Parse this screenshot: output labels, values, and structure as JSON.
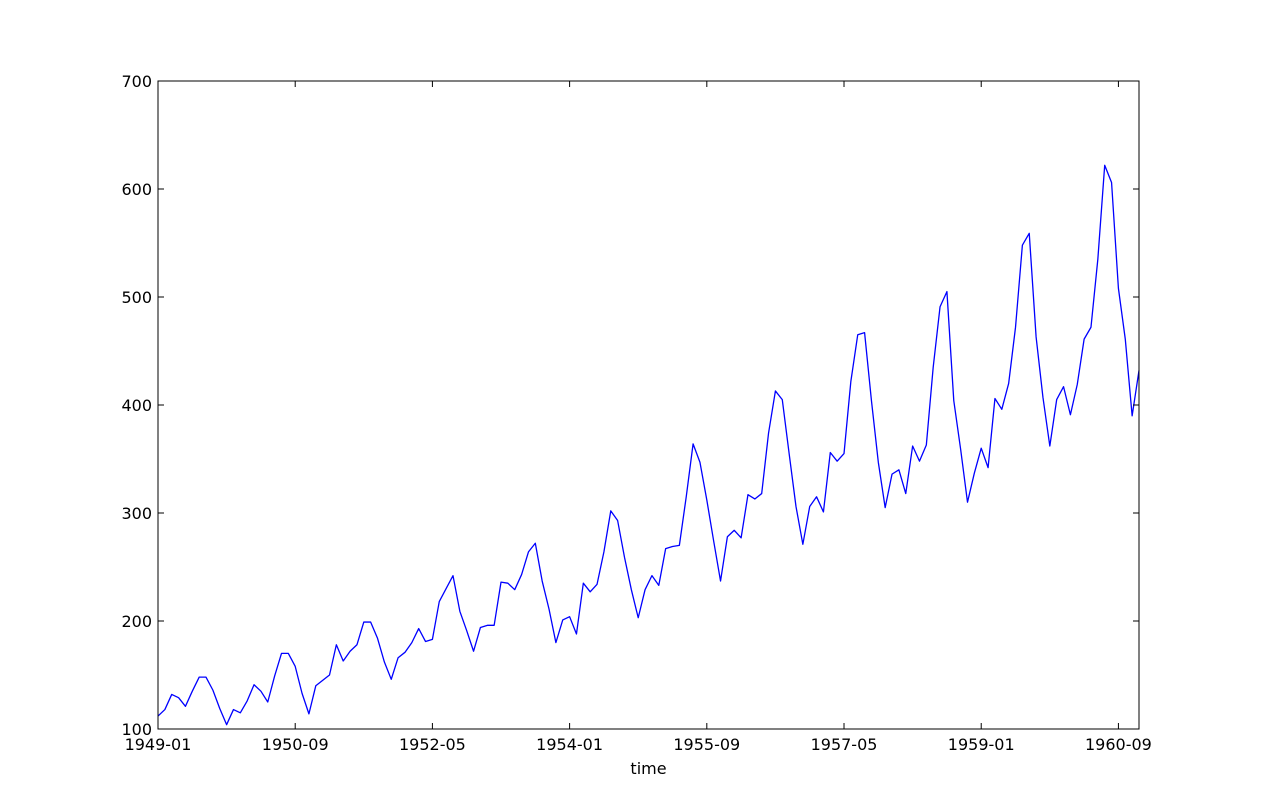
{
  "chart_data": {
    "type": "line",
    "title": "",
    "xlabel": "time",
    "ylabel": "",
    "ylim": [
      100,
      700
    ],
    "yticks": [
      100,
      200,
      300,
      400,
      500,
      600,
      700
    ],
    "xlim": [
      "1949-01",
      "1960-12"
    ],
    "xticks": [
      "1949-01",
      "1950-09",
      "1952-05",
      "1954-01",
      "1955-09",
      "1957-05",
      "1959-01",
      "1960-09"
    ],
    "grid": false,
    "legend": "none",
    "colors": {
      "line": "#0000ff",
      "axes": "#000000",
      "background": "#ffffff"
    },
    "series": [
      {
        "x": [
          "1949-01",
          "1949-02",
          "1949-03",
          "1949-04",
          "1949-05",
          "1949-06",
          "1949-07",
          "1949-08",
          "1949-09",
          "1949-10",
          "1949-11",
          "1949-12",
          "1950-01",
          "1950-02",
          "1950-03",
          "1950-04",
          "1950-05",
          "1950-06",
          "1950-07",
          "1950-08",
          "1950-09",
          "1950-10",
          "1950-11",
          "1950-12",
          "1951-01",
          "1951-02",
          "1951-03",
          "1951-04",
          "1951-05",
          "1951-06",
          "1951-07",
          "1951-08",
          "1951-09",
          "1951-10",
          "1951-11",
          "1951-12",
          "1952-01",
          "1952-02",
          "1952-03",
          "1952-04",
          "1952-05",
          "1952-06",
          "1952-07",
          "1952-08",
          "1952-09",
          "1952-10",
          "1952-11",
          "1952-12",
          "1953-01",
          "1953-02",
          "1953-03",
          "1953-04",
          "1953-05",
          "1953-06",
          "1953-07",
          "1953-08",
          "1953-09",
          "1953-10",
          "1953-11",
          "1953-12",
          "1954-01",
          "1954-02",
          "1954-03",
          "1954-04",
          "1954-05",
          "1954-06",
          "1954-07",
          "1954-08",
          "1954-09",
          "1954-10",
          "1954-11",
          "1954-12",
          "1955-01",
          "1955-02",
          "1955-03",
          "1955-04",
          "1955-05",
          "1955-06",
          "1955-07",
          "1955-08",
          "1955-09",
          "1955-10",
          "1955-11",
          "1955-12",
          "1956-01",
          "1956-02",
          "1956-03",
          "1956-04",
          "1956-05",
          "1956-06",
          "1956-07",
          "1956-08",
          "1956-09",
          "1956-10",
          "1956-11",
          "1956-12",
          "1957-01",
          "1957-02",
          "1957-03",
          "1957-04",
          "1957-05",
          "1957-06",
          "1957-07",
          "1957-08",
          "1957-09",
          "1957-10",
          "1957-11",
          "1957-12",
          "1958-01",
          "1958-02",
          "1958-03",
          "1958-04",
          "1958-05",
          "1958-06",
          "1958-07",
          "1958-08",
          "1958-09",
          "1958-10",
          "1958-11",
          "1958-12",
          "1959-01",
          "1959-02",
          "1959-03",
          "1959-04",
          "1959-05",
          "1959-06",
          "1959-07",
          "1959-08",
          "1959-09",
          "1959-10",
          "1959-11",
          "1959-12",
          "1960-01",
          "1960-02",
          "1960-03",
          "1960-04",
          "1960-05",
          "1960-06",
          "1960-07",
          "1960-08",
          "1960-09",
          "1960-10",
          "1960-11",
          "1960-12"
        ],
        "values": [
          112,
          118,
          132,
          129,
          121,
          135,
          148,
          148,
          136,
          119,
          104,
          118,
          115,
          126,
          141,
          135,
          125,
          149,
          170,
          170,
          158,
          133,
          114,
          140,
          145,
          150,
          178,
          163,
          172,
          178,
          199,
          199,
          184,
          162,
          146,
          166,
          171,
          180,
          193,
          181,
          183,
          218,
          230,
          242,
          209,
          191,
          172,
          194,
          196,
          196,
          236,
          235,
          229,
          243,
          264,
          272,
          237,
          211,
          180,
          201,
          204,
          188,
          235,
          227,
          234,
          264,
          302,
          293,
          259,
          229,
          203,
          229,
          242,
          233,
          267,
          269,
          270,
          315,
          364,
          347,
          312,
          274,
          237,
          278,
          284,
          277,
          317,
          313,
          318,
          374,
          413,
          405,
          355,
          306,
          271,
          306,
          315,
          301,
          356,
          348,
          355,
          422,
          465,
          467,
          404,
          347,
          305,
          336,
          340,
          318,
          362,
          348,
          363,
          435,
          491,
          505,
          404,
          359,
          310,
          337,
          360,
          342,
          406,
          396,
          420,
          472,
          548,
          559,
          463,
          407,
          362,
          405,
          417,
          391,
          419,
          461,
          472,
          535,
          622,
          606,
          508,
          461,
          390,
          432
        ]
      }
    ]
  }
}
